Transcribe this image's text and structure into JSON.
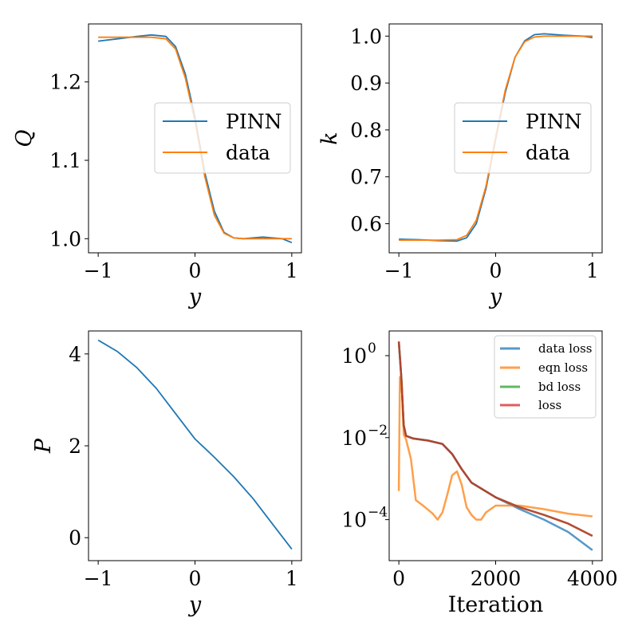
{
  "chart_data": [
    {
      "type": "line",
      "panel": "top-left",
      "xlabel": "y",
      "ylabel": "Q",
      "xlim": [
        -1.1,
        1.1
      ],
      "ylim": [
        0.982,
        1.274
      ],
      "xticks": [
        -1,
        0,
        1
      ],
      "xtick_labels": [
        "−1",
        "0",
        "1"
      ],
      "yticks": [
        1.0,
        1.1,
        1.2
      ],
      "ytick_labels": [
        "1.0",
        "1.1",
        "1.2"
      ],
      "legend": "center-right",
      "series": [
        {
          "name": "PINN",
          "color": "#1f77b4",
          "x": [
            -1,
            -0.8,
            -0.6,
            -0.45,
            -0.3,
            -0.2,
            -0.1,
            0,
            0.1,
            0.2,
            0.3,
            0.4,
            0.5,
            0.7,
            0.9,
            1.0
          ],
          "y": [
            1.252,
            1.255,
            1.258,
            1.26,
            1.258,
            1.245,
            1.21,
            1.155,
            1.085,
            1.035,
            1.008,
            1.001,
            1.0,
            1.002,
            1.0,
            0.995
          ]
        },
        {
          "name": "data",
          "color": "#ff7f0e",
          "x": [
            -1,
            -0.8,
            -0.6,
            -0.45,
            -0.3,
            -0.2,
            -0.1,
            0,
            0.1,
            0.2,
            0.3,
            0.4,
            0.5,
            0.7,
            0.9,
            1.0
          ],
          "y": [
            1.257,
            1.257,
            1.257,
            1.257,
            1.255,
            1.242,
            1.205,
            1.15,
            1.08,
            1.03,
            1.007,
            1.001,
            1.0,
            1.0,
            1.0,
            1.0
          ]
        }
      ]
    },
    {
      "type": "line",
      "panel": "top-right",
      "xlabel": "y",
      "ylabel": "k",
      "xlim": [
        -1.1,
        1.1
      ],
      "ylim": [
        0.538,
        1.026
      ],
      "xticks": [
        -1,
        0,
        1
      ],
      "xtick_labels": [
        "−1",
        "0",
        "1"
      ],
      "yticks": [
        0.6,
        0.7,
        0.8,
        0.9,
        1.0
      ],
      "ytick_labels": [
        "0.6",
        "0.7",
        "0.8",
        "0.9",
        "1.0"
      ],
      "legend": "center-right",
      "series": [
        {
          "name": "PINN",
          "color": "#1f77b4",
          "x": [
            -1,
            -0.8,
            -0.6,
            -0.4,
            -0.3,
            -0.2,
            -0.1,
            0,
            0.1,
            0.2,
            0.3,
            0.4,
            0.5,
            0.7,
            0.9,
            1.0
          ],
          "y": [
            0.567,
            0.566,
            0.564,
            0.563,
            0.57,
            0.6,
            0.675,
            0.78,
            0.88,
            0.955,
            0.99,
            1.003,
            1.005,
            1.002,
            1.0,
            0.997
          ]
        },
        {
          "name": "data",
          "color": "#ff7f0e",
          "x": [
            -1,
            -0.8,
            -0.6,
            -0.4,
            -0.3,
            -0.2,
            -0.1,
            0,
            0.1,
            0.2,
            0.3,
            0.4,
            0.5,
            0.7,
            0.9,
            1.0
          ],
          "y": [
            0.565,
            0.565,
            0.565,
            0.566,
            0.575,
            0.607,
            0.68,
            0.785,
            0.885,
            0.955,
            0.988,
            0.998,
            1.0,
            1.0,
            1.0,
            1.0
          ]
        }
      ]
    },
    {
      "type": "line",
      "panel": "bottom-left",
      "xlabel": "y",
      "ylabel": "P",
      "xlim": [
        -1.1,
        1.1
      ],
      "ylim": [
        -0.5,
        4.5
      ],
      "xticks": [
        -1,
        0,
        1
      ],
      "xtick_labels": [
        "−1",
        "0",
        "1"
      ],
      "yticks": [
        0,
        2,
        4
      ],
      "ytick_labels": [
        "0",
        "2",
        "4"
      ],
      "series": [
        {
          "name": "",
          "color": "#1f77b4",
          "x": [
            -1,
            -0.8,
            -0.6,
            -0.4,
            -0.2,
            0,
            0.2,
            0.4,
            0.6,
            0.8,
            1.0
          ],
          "y": [
            4.3,
            4.05,
            3.7,
            3.25,
            2.7,
            2.15,
            1.75,
            1.33,
            0.85,
            0.3,
            -0.25
          ]
        }
      ]
    },
    {
      "type": "line",
      "panel": "bottom-right",
      "xlabel": "Iteration",
      "ylabel": "",
      "yscale": "log",
      "xlim": [
        -200,
        4200
      ],
      "ylim": [
        1e-05,
        4
      ],
      "xticks": [
        0,
        2000,
        4000
      ],
      "xtick_labels": [
        "0",
        "2000",
        "4000"
      ],
      "yticks": [
        0.0001,
        0.01,
        1
      ],
      "ytick_bases": [
        "10",
        "10",
        "10"
      ],
      "ytick_exponents": [
        "−4",
        "−2",
        "0"
      ],
      "legend": "top-right",
      "series": [
        {
          "name": "data loss",
          "color": "#1f77b4",
          "x": [
            0,
            50,
            100,
            150,
            300,
            600,
            900,
            1100,
            1300,
            1500,
            2000,
            2500,
            3000,
            3500,
            4000
          ],
          "y": [
            2.2,
            0.3,
            0.02,
            0.011,
            0.0095,
            0.0085,
            0.007,
            0.004,
            0.0017,
            0.0008,
            0.00035,
            0.00018,
            0.0001,
            5e-05,
            1.8e-05
          ]
        },
        {
          "name": "eqn loss",
          "color": "#ff7f0e",
          "x": [
            0,
            20,
            60,
            100,
            150,
            250,
            350,
            500,
            700,
            800,
            900,
            1000,
            1100,
            1200,
            1300,
            1400,
            1500,
            1600,
            1700,
            1800,
            2000,
            2200,
            2500,
            3000,
            3500,
            4000
          ],
          "y": [
            0.0005,
            0.3,
            0.2,
            0.012,
            0.009,
            0.003,
            0.0003,
            0.00022,
            0.00014,
            0.0001,
            0.00015,
            0.0004,
            0.0012,
            0.0015,
            0.0007,
            0.0002,
            0.00013,
            0.0001,
            0.0001,
            0.00015,
            0.00022,
            0.00022,
            0.00022,
            0.00018,
            0.00014,
            0.00012
          ]
        },
        {
          "name": "bd loss",
          "color": "#2ca02c",
          "x": [
            0,
            50,
            100,
            150,
            300,
            600,
            900,
            1100,
            1300,
            1500,
            2000,
            2500,
            3000,
            3500,
            4000
          ],
          "y": [
            2.2,
            0.3,
            0.02,
            0.011,
            0.0095,
            0.0085,
            0.007,
            0.004,
            0.0017,
            0.0008,
            0.00035,
            0.0002,
            0.00013,
            8e-05,
            4e-05
          ]
        },
        {
          "name": "loss",
          "color": "#d62728",
          "x": [
            0,
            50,
            100,
            150,
            300,
            600,
            900,
            1100,
            1300,
            1500,
            2000,
            2500,
            3000,
            3500,
            4000
          ],
          "y": [
            2.2,
            0.3,
            0.02,
            0.011,
            0.0095,
            0.0085,
            0.007,
            0.004,
            0.0017,
            0.0008,
            0.00035,
            0.0002,
            0.00013,
            8e-05,
            4e-05
          ]
        }
      ]
    }
  ]
}
